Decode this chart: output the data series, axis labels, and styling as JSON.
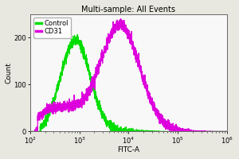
{
  "title": "Multi-sample: All Events",
  "xlabel": "FITC-A",
  "ylabel": "Count",
  "xlim_log": [
    2,
    6
  ],
  "ylim": [
    0,
    250
  ],
  "yticks": [
    0,
    100,
    200
  ],
  "plot_bg_color": "#f8f8f8",
  "fig_bg_color": "#e8e8e0",
  "control_color": "#00dd00",
  "cd31_color": "#dd00dd",
  "legend_labels": [
    "Control",
    "CD31"
  ],
  "control_peak_log": 2.92,
  "control_sigma": 0.3,
  "control_peak_height": 195,
  "cd31_peak_log": 3.82,
  "cd31_sigma": 0.4,
  "cd31_peak_height": 225,
  "cd31_left_height": 50,
  "title_fontsize": 7,
  "label_fontsize": 6.5,
  "tick_fontsize": 6,
  "legend_fontsize": 6,
  "lw": 0.9
}
